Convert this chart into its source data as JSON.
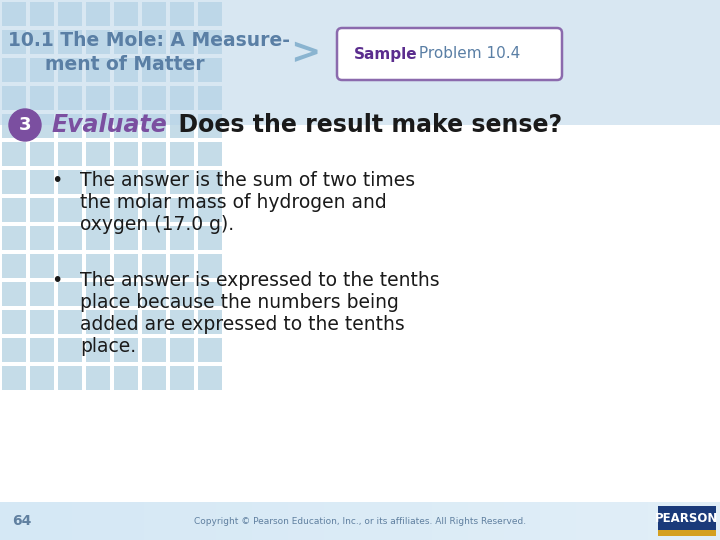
{
  "bg_color": "#ffffff",
  "header_bg_color": "#b8d4e8",
  "title_line1": "10.1 The Mole: A Measure-",
  "title_line2": "ment of Matter",
  "title_color": "#5a7fa5",
  "arrow_color": "#8ab4d0",
  "sample_bold": "Sample",
  "sample_bold_color": "#5b2d8e",
  "sample_rest": " Problem 10.4",
  "sample_rest_color": "#5a7fa5",
  "badge_border": "#8b6aad",
  "step_num": "3",
  "step_circle_color": "#7b4fa0",
  "step_text_color": "#ffffff",
  "evaluate_text": "Evaluate",
  "evaluate_color": "#7b4fa0",
  "subtitle": "  Does the result make sense?",
  "subtitle_color": "#1a1a1a",
  "b1l1": "The answer is the sum of two times",
  "b1l2": "the molar mass of hydrogen and",
  "b1l3": "oxygen (17.0 g).",
  "b2l1": "The answer is expressed to the tenths",
  "b2l2": "place because the numbers being",
  "b2l3": "added are expressed to the tenths",
  "b2l4": "place.",
  "bullet_color": "#1a1a1a",
  "grid_color": "#c5dce8",
  "grid_tile": 28,
  "grid_cols": 8,
  "grid_rows": 14,
  "page_num": "64",
  "footer_text": "Copyright © Pearson Education, Inc., or its affiliates. All Rights Reserved.",
  "footer_color": "#6080a0",
  "pearson_bg": "#1a3a7a",
  "pearson_text": "PEARSON",
  "pearson_accent": "#d4a020"
}
